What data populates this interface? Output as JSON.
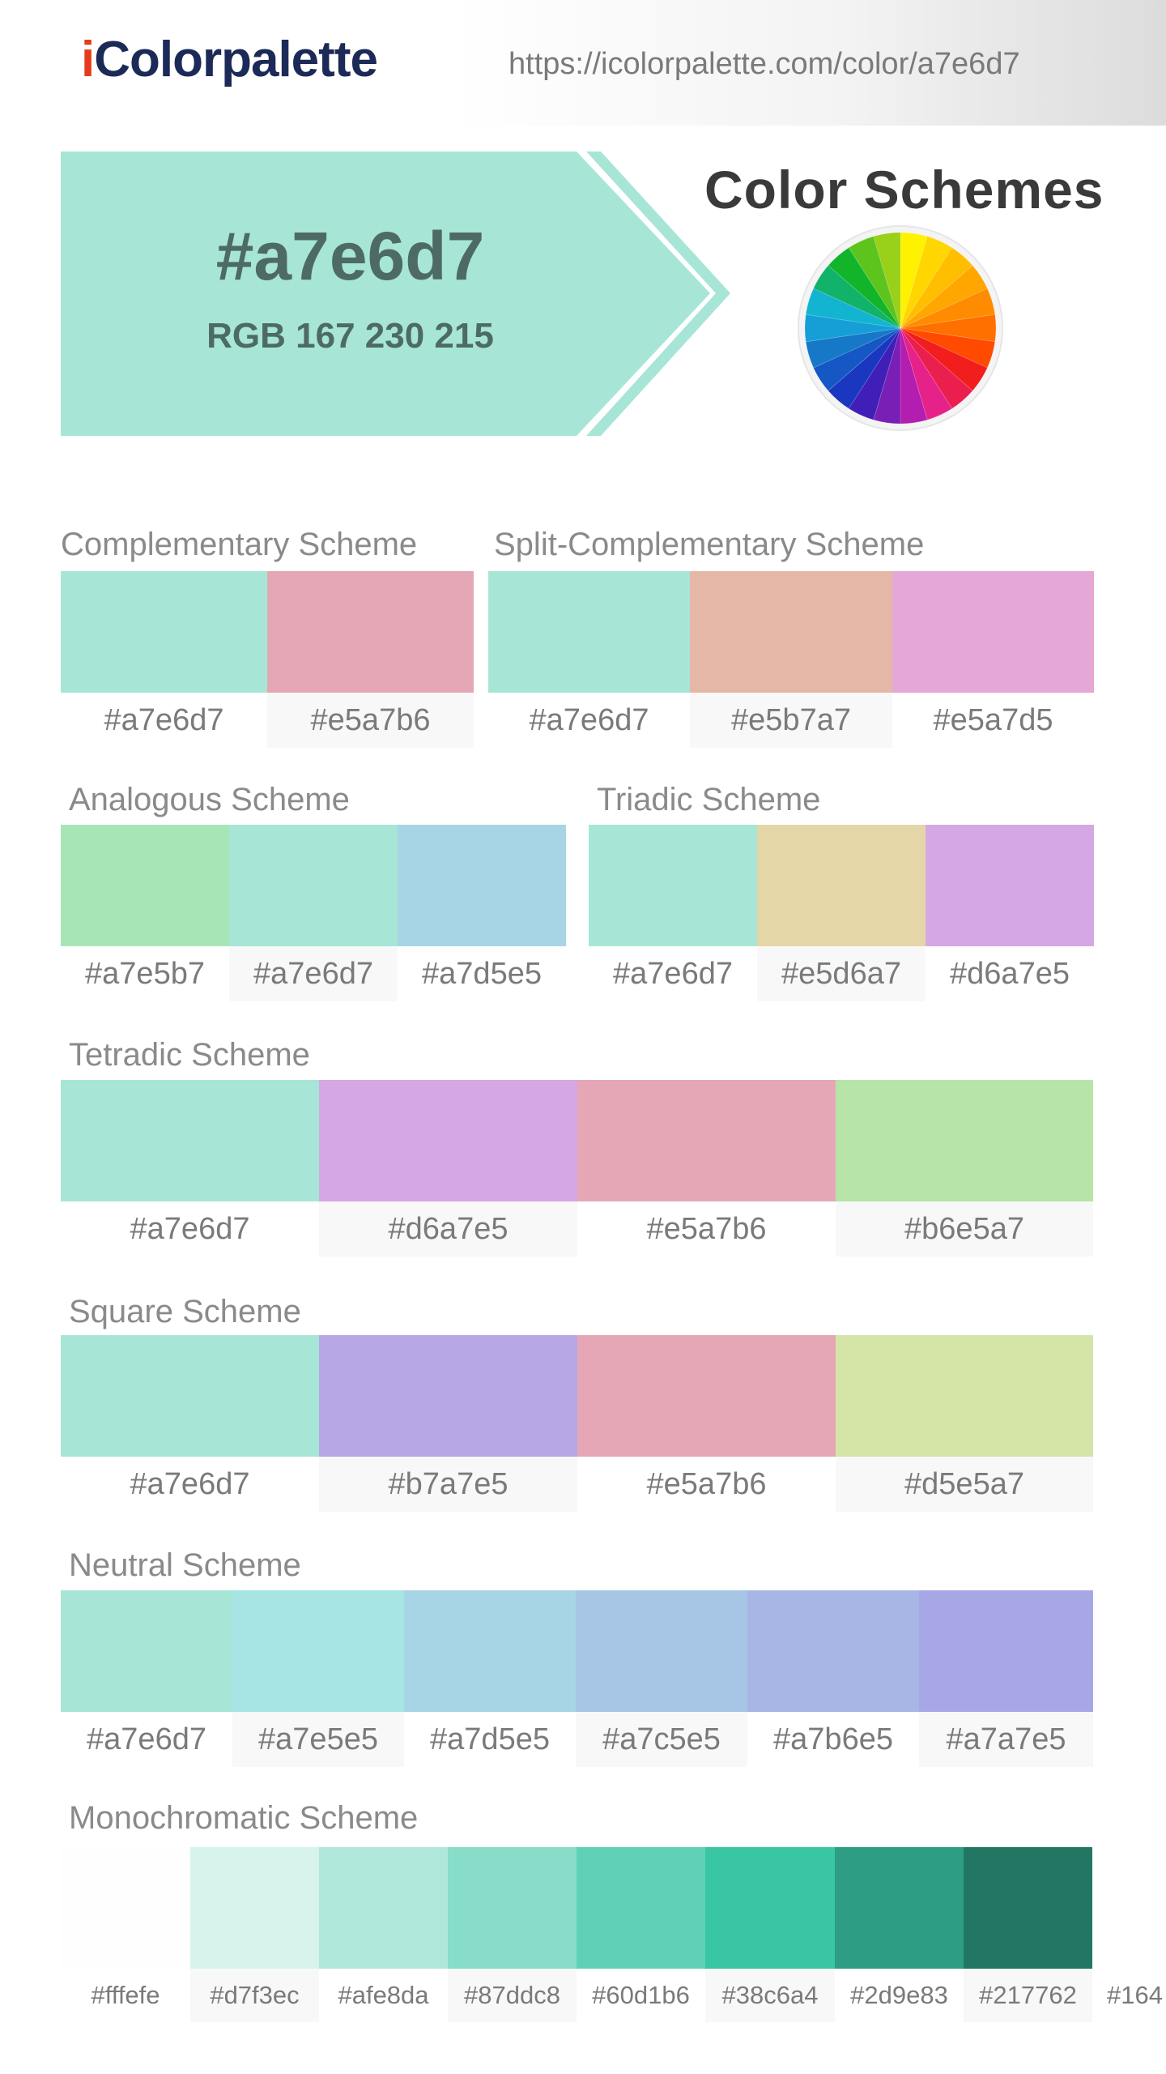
{
  "header": {
    "logo_i": "i",
    "logo_rest": "Colorpalette",
    "url": "https://icolorpalette.com/color/a7e6d7"
  },
  "hero": {
    "hex": "#a7e6d7",
    "rgb": "RGB 167 230 215",
    "color": "#a7e6d7"
  },
  "color_schemes_title": "Color Schemes",
  "wheel_icon": "color-wheel-icon",
  "sections": [
    {
      "id": "complementary",
      "title": "Complementary Scheme",
      "colors": [
        "#a7e6d7",
        "#e5a7b6"
      ]
    },
    {
      "id": "split-complementary",
      "title": "Split-Complementary Scheme",
      "colors": [
        "#a7e6d7",
        "#e5b7a7",
        "#e5a7d5"
      ]
    },
    {
      "id": "analogous",
      "title": "Analogous Scheme",
      "colors": [
        "#a7e5b7",
        "#a7e6d7",
        "#a7d5e5"
      ]
    },
    {
      "id": "triadic",
      "title": "Triadic Scheme",
      "colors": [
        "#a7e6d7",
        "#e5d6a7",
        "#d6a7e5"
      ]
    },
    {
      "id": "tetradic",
      "title": "Tetradic Scheme",
      "colors": [
        "#a7e6d7",
        "#d6a7e5",
        "#e5a7b6",
        "#b6e5a7"
      ]
    },
    {
      "id": "square",
      "title": "Square Scheme",
      "colors": [
        "#a7e6d7",
        "#b7a7e5",
        "#e5a7b6",
        "#d5e5a7"
      ]
    },
    {
      "id": "neutral",
      "title": "Neutral Scheme",
      "colors": [
        "#a7e6d7",
        "#a7e5e5",
        "#a7d5e5",
        "#a7c5e5",
        "#a7b6e5",
        "#a7a7e5"
      ]
    },
    {
      "id": "monochromatic",
      "title": "Monochromatic Scheme",
      "colors": [
        "#fffefe",
        "#d7f3ec",
        "#afe8da",
        "#87ddc8",
        "#60d1b6",
        "#38c6a4",
        "#2d9e83",
        "#217762",
        "#164"
      ]
    }
  ]
}
